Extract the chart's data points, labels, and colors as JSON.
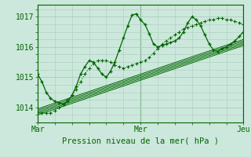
{
  "background_color": "#cce8dc",
  "grid_color": "#aaccbb",
  "line_color": "#006600",
  "xlim": [
    0,
    48
  ],
  "ylim": [
    1013.5,
    1017.4
  ],
  "yticks": [
    1014,
    1015,
    1016,
    1017
  ],
  "xtick_positions": [
    0,
    24,
    48
  ],
  "xtick_labels": [
    "Mar",
    "Mer",
    "Jeu"
  ],
  "xlabel": "Pression niveau de la mer( hPa )",
  "vlines": [
    0,
    24,
    48
  ],
  "series1_x": [
    0,
    1,
    2,
    3,
    4,
    5,
    6,
    7,
    8,
    9,
    10,
    11,
    12,
    13,
    14,
    15,
    16,
    17,
    18,
    19,
    20,
    21,
    22,
    23,
    24,
    25,
    26,
    27,
    28,
    29,
    30,
    31,
    32,
    33,
    34,
    35,
    36,
    37,
    38,
    39,
    40,
    41,
    42,
    43,
    44,
    45,
    46,
    47,
    48
  ],
  "series1_y": [
    1015.1,
    1014.85,
    1014.5,
    1014.3,
    1014.2,
    1014.15,
    1014.1,
    1014.2,
    1014.4,
    1014.7,
    1015.1,
    1015.35,
    1015.55,
    1015.5,
    1015.3,
    1015.1,
    1015.0,
    1015.2,
    1015.5,
    1015.9,
    1016.3,
    1016.7,
    1017.05,
    1017.1,
    1016.9,
    1016.75,
    1016.45,
    1016.1,
    1016.0,
    1016.05,
    1016.1,
    1016.15,
    1016.2,
    1016.3,
    1016.5,
    1016.8,
    1017.0,
    1016.9,
    1016.7,
    1016.4,
    1016.1,
    1015.9,
    1015.85,
    1015.95,
    1016.0,
    1016.1,
    1016.2,
    1016.35,
    1016.5
  ],
  "series2_x": [
    0,
    1,
    2,
    3,
    4,
    5,
    6,
    7,
    8,
    9,
    10,
    11,
    12,
    13,
    14,
    15,
    16,
    17,
    18,
    19,
    20,
    21,
    22,
    23,
    24,
    25,
    26,
    27,
    28,
    29,
    30,
    31,
    32,
    33,
    34,
    35,
    36,
    37,
    38,
    39,
    40,
    41,
    42,
    43,
    44,
    45,
    46,
    47,
    48
  ],
  "series2_y": [
    1013.85,
    1013.82,
    1013.8,
    1013.82,
    1013.9,
    1014.0,
    1014.1,
    1014.25,
    1014.4,
    1014.6,
    1014.85,
    1015.1,
    1015.3,
    1015.45,
    1015.55,
    1015.55,
    1015.55,
    1015.5,
    1015.4,
    1015.35,
    1015.3,
    1015.35,
    1015.4,
    1015.45,
    1015.5,
    1015.55,
    1015.65,
    1015.8,
    1015.95,
    1016.1,
    1016.2,
    1016.3,
    1016.4,
    1016.5,
    1016.6,
    1016.65,
    1016.7,
    1016.75,
    1016.8,
    1016.85,
    1016.9,
    1016.9,
    1016.95,
    1016.95,
    1016.9,
    1016.9,
    1016.85,
    1016.8,
    1016.75
  ],
  "linear_lines": [
    [
      [
        0,
        48
      ],
      [
        1013.75,
        1016.05
      ]
    ],
    [
      [
        0,
        48
      ],
      [
        1013.8,
        1016.1
      ]
    ],
    [
      [
        0,
        48
      ],
      [
        1013.85,
        1016.15
      ]
    ],
    [
      [
        0,
        48
      ],
      [
        1013.9,
        1016.2
      ]
    ],
    [
      [
        0,
        48
      ],
      [
        1013.95,
        1016.25
      ]
    ]
  ]
}
